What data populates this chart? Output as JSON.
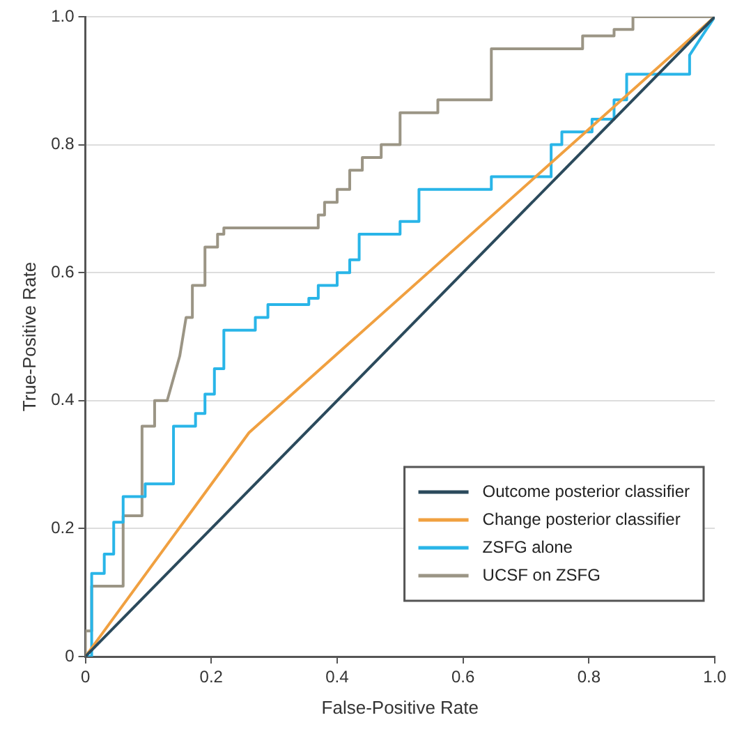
{
  "chart_data": {
    "type": "line",
    "xlabel": "False-Positive Rate",
    "ylabel": "True-Positive Rate",
    "xlim": [
      0,
      1
    ],
    "ylim": [
      0,
      1
    ],
    "xticks": [
      0,
      0.2,
      0.4,
      0.6,
      0.8,
      {
        "value": 1,
        "label": "1.0"
      }
    ],
    "yticks": [
      0,
      0.2,
      0.4,
      0.6,
      0.8,
      {
        "value": 1,
        "label": "1.0"
      }
    ],
    "grid": "y",
    "legend": "bottom right",
    "marker": "none",
    "line_style": "solid",
    "series": [
      {
        "name": "Outcome posterior classifier",
        "color": "#2b4a5c",
        "x": [
          0,
          1
        ],
        "values": [
          0,
          1
        ]
      },
      {
        "name": "Change posterior classifier",
        "color": "#f0a040",
        "x": [
          0,
          0.26,
          1
        ],
        "values": [
          0,
          0.35,
          1
        ]
      },
      {
        "name": "ZSFG alone",
        "color": "#29b5e8",
        "x": [
          0,
          0.01,
          0.01,
          0.03,
          0.03,
          0.045,
          0.045,
          0.06,
          0.06,
          0.095,
          0.095,
          0.14,
          0.14,
          0.175,
          0.175,
          0.19,
          0.19,
          0.205,
          0.205,
          0.22,
          0.22,
          0.27,
          0.27,
          0.29,
          0.29,
          0.355,
          0.355,
          0.37,
          0.37,
          0.4,
          0.4,
          0.42,
          0.42,
          0.435,
          0.435,
          0.5,
          0.5,
          0.53,
          0.53,
          0.645,
          0.645,
          0.74,
          0.74,
          0.757,
          0.757,
          0.805,
          0.805,
          0.84,
          0.84,
          0.86,
          0.86,
          0.96,
          0.96,
          1
        ],
        "values": [
          0,
          0,
          0.13,
          0.13,
          0.16,
          0.16,
          0.21,
          0.21,
          0.25,
          0.25,
          0.27,
          0.27,
          0.36,
          0.36,
          0.38,
          0.38,
          0.41,
          0.41,
          0.45,
          0.45,
          0.51,
          0.51,
          0.53,
          0.53,
          0.55,
          0.55,
          0.56,
          0.56,
          0.58,
          0.58,
          0.6,
          0.6,
          0.62,
          0.62,
          0.66,
          0.66,
          0.68,
          0.68,
          0.73,
          0.73,
          0.75,
          0.75,
          0.8,
          0.8,
          0.82,
          0.82,
          0.84,
          0.84,
          0.87,
          0.87,
          0.91,
          0.91,
          0.94,
          1
        ]
      },
      {
        "name": "UCSF on ZSFG",
        "color": "#9b9585",
        "x": [
          0,
          0,
          0.01,
          0.01,
          0.06,
          0.06,
          0.09,
          0.09,
          0.11,
          0.11,
          0.13,
          0.15,
          0.16,
          0.17,
          0.17,
          0.19,
          0.19,
          0.21,
          0.21,
          0.22,
          0.22,
          0.37,
          0.37,
          0.38,
          0.38,
          0.4,
          0.4,
          0.42,
          0.42,
          0.44,
          0.44,
          0.47,
          0.47,
          0.5,
          0.5,
          0.56,
          0.56,
          0.645,
          0.645,
          0.79,
          0.79,
          0.84,
          0.84,
          0.87,
          0.87,
          1
        ],
        "values": [
          0,
          0.04,
          0.04,
          0.11,
          0.11,
          0.22,
          0.22,
          0.36,
          0.36,
          0.4,
          0.4,
          0.47,
          0.53,
          0.53,
          0.58,
          0.58,
          0.64,
          0.64,
          0.66,
          0.66,
          0.67,
          0.67,
          0.69,
          0.69,
          0.71,
          0.71,
          0.73,
          0.73,
          0.76,
          0.76,
          0.78,
          0.78,
          0.8,
          0.8,
          0.85,
          0.85,
          0.87,
          0.87,
          0.95,
          0.95,
          0.97,
          0.97,
          0.98,
          0.98,
          1,
          1
        ]
      }
    ]
  }
}
